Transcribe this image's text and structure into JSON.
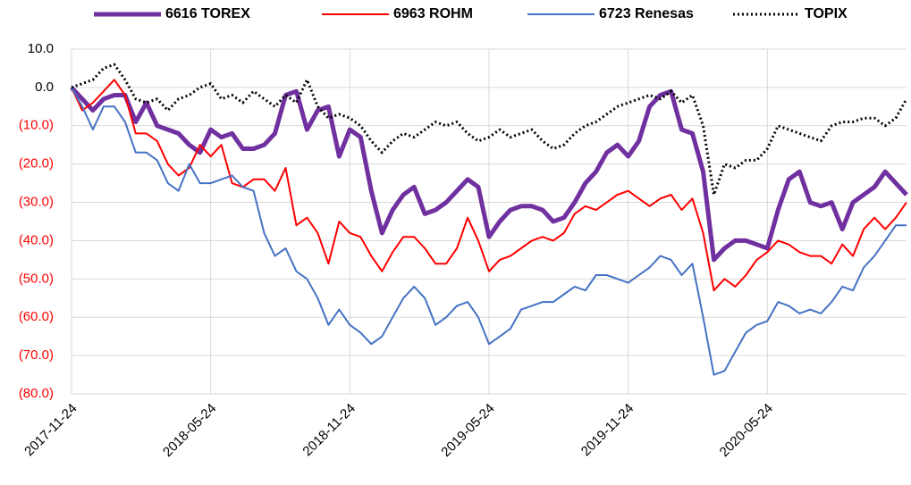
{
  "chart_data": {
    "type": "line",
    "categories": [
      "2017-11-24",
      null,
      null,
      null,
      null,
      null,
      null,
      null,
      null,
      null,
      null,
      null,
      null,
      "2018-05-24",
      null,
      null,
      null,
      null,
      null,
      null,
      null,
      null,
      null,
      null,
      null,
      null,
      "2018-11-24",
      null,
      null,
      null,
      null,
      null,
      null,
      null,
      null,
      null,
      null,
      null,
      null,
      "2019-05-24",
      null,
      null,
      null,
      null,
      null,
      null,
      null,
      null,
      null,
      null,
      null,
      null,
      "2019-11-24",
      null,
      null,
      null,
      null,
      null,
      null,
      null,
      null,
      null,
      null,
      null,
      null,
      "2020-05-24",
      null,
      null,
      null,
      null,
      null,
      null,
      null,
      null,
      null,
      null,
      null,
      null,
      null
    ],
    "series": [
      {
        "name": "6616 TOREX",
        "color": "#7030a0",
        "width": 5,
        "dash": "solid",
        "values": [
          0,
          -3,
          -6,
          -3,
          -2,
          -2,
          -9,
          -4,
          -10,
          -11,
          -12,
          -15,
          -17,
          -11,
          -13,
          -12,
          -16,
          -16,
          -15,
          -12,
          -2,
          -1,
          -11,
          -6,
          -5,
          -18,
          -11,
          -13,
          -27,
          -38,
          -32,
          -28,
          -26,
          -33,
          -32,
          -30,
          -27,
          -24,
          -26,
          -39,
          -35,
          -32,
          -31,
          -31,
          -32,
          -35,
          -34,
          -30,
          -25,
          -22,
          -17,
          -15,
          -18,
          -14,
          -5,
          -2,
          -1,
          -11,
          -12,
          -22,
          -45,
          -42,
          -40,
          -40,
          -41,
          -42,
          -32,
          -24,
          -22,
          -30,
          -31,
          -30,
          -37,
          -30,
          -28,
          -26,
          -22,
          -25,
          -28
        ]
      },
      {
        "name": "6963 ROHM",
        "color": "#ff0000",
        "width": 2,
        "dash": "solid",
        "values": [
          0,
          -6,
          -4,
          -1,
          2,
          -2,
          -12,
          -12,
          -14,
          -20,
          -23,
          -21,
          -15,
          -18,
          -15,
          -25,
          -26,
          -24,
          -24,
          -27,
          -21,
          -36,
          -34,
          -38,
          -46,
          -35,
          -38,
          -39,
          -44,
          -48,
          -43,
          -39,
          -39,
          -42,
          -46,
          -46,
          -42,
          -34,
          -40,
          -48,
          -45,
          -44,
          -42,
          -40,
          -39,
          -40,
          -38,
          -33,
          -31,
          -32,
          -30,
          -28,
          -27,
          -29,
          -31,
          -29,
          -28,
          -32,
          -29,
          -38,
          -53,
          -50,
          -52,
          -49,
          -45,
          -43,
          -40,
          -41,
          -43,
          -44,
          -44,
          -46,
          -41,
          -44,
          -37,
          -34,
          -37,
          -34,
          -30
        ]
      },
      {
        "name": "6723 Renesas",
        "color": "#4472c4",
        "width": 2,
        "dash": "solid",
        "values": [
          0,
          -5,
          -11,
          -5,
          -5,
          -9,
          -17,
          -17,
          -19,
          -25,
          -27,
          -20,
          -25,
          -25,
          -24,
          -23,
          -26,
          -27,
          -38,
          -44,
          -42,
          -48,
          -50,
          -55,
          -62,
          -58,
          -62,
          -64,
          -67,
          -65,
          -60,
          -55,
          -52,
          -55,
          -62,
          -60,
          -57,
          -56,
          -60,
          -67,
          -65,
          -63,
          -58,
          -57,
          -56,
          -56,
          -54,
          -52,
          -53,
          -49,
          -49,
          -50,
          -51,
          -49,
          -47,
          -44,
          -45,
          -49,
          -46,
          -60,
          -75,
          -74,
          -69,
          -64,
          -62,
          -61,
          -56,
          -57,
          -59,
          -58,
          -59,
          -56,
          -52,
          -53,
          -47,
          -44,
          -40,
          -36,
          -36
        ]
      },
      {
        "name": "TOPIX",
        "color": "#000000",
        "width": 3,
        "dash": "dotted",
        "values": [
          0,
          1,
          2,
          5,
          6,
          2,
          -3,
          -4,
          -3,
          -6,
          -3,
          -2,
          0,
          1,
          -3,
          -2,
          -4,
          -1,
          -3,
          -5,
          -2,
          -4,
          2,
          -5,
          -8,
          -7,
          -8,
          -10,
          -14,
          -17,
          -14,
          -12,
          -13,
          -11,
          -9,
          -10,
          -9,
          -12,
          -14,
          -13,
          -11,
          -13,
          -12,
          -11,
          -14,
          -16,
          -15,
          -12,
          -10,
          -9,
          -7,
          -5,
          -4,
          -3,
          -2,
          -3,
          -1,
          -4,
          -2,
          -10,
          -28,
          -20,
          -21,
          -19,
          -19,
          -16,
          -10,
          -11,
          -12,
          -13,
          -14,
          -10,
          -9,
          -9,
          -8,
          -8,
          -10,
          -8,
          -3
        ]
      }
    ],
    "ylim": [
      -80,
      10
    ],
    "yticks": [
      {
        "value": -80,
        "label": "(80.0)"
      },
      {
        "value": -70,
        "label": "(70.0)"
      },
      {
        "value": -60,
        "label": "(60.0)"
      },
      {
        "value": -50,
        "label": "(50.0)"
      },
      {
        "value": -40,
        "label": "(40.0)"
      },
      {
        "value": -30,
        "label": "(30.0)"
      },
      {
        "value": -20,
        "label": "(20.0)"
      },
      {
        "value": -10,
        "label": "(10.0)"
      },
      {
        "value": 0,
        "label": "0.0"
      },
      {
        "value": 10,
        "label": "10.0"
      }
    ],
    "grid": true,
    "legend": "top"
  }
}
